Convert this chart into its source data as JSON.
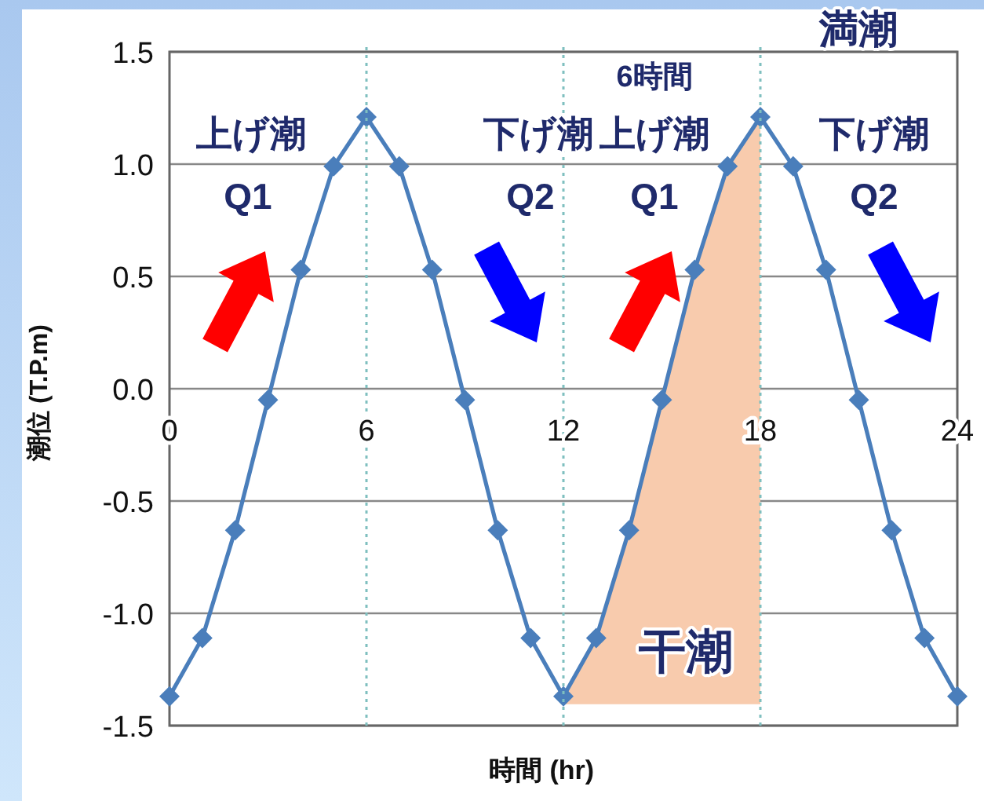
{
  "chart_data": {
    "type": "line",
    "xlabel": "時間 (hr)",
    "ylabel": "潮位 (T.P.m)",
    "xlim": [
      0,
      24
    ],
    "ylim": [
      -1.5,
      1.5
    ],
    "xticks": [
      0,
      6,
      12,
      18,
      24
    ],
    "yticks": [
      {
        "value": -1.5,
        "label": "-1.5"
      },
      {
        "value": -1,
        "label": "-1.0"
      },
      {
        "value": -0.5,
        "label": "-0.5"
      },
      {
        "value": 0,
        "label": "0.0"
      },
      {
        "value": 0.5,
        "label": "0.5"
      },
      {
        "value": 1,
        "label": "1.0"
      },
      {
        "value": 1.5,
        "label": "1.5"
      }
    ],
    "grid": "y",
    "marker": "diamond",
    "line_style": "solid",
    "series": [
      {
        "color": "#4a7ebb",
        "x": [
          0,
          1,
          2,
          3,
          4,
          5,
          6,
          7,
          8,
          9,
          10,
          11,
          12,
          13,
          14,
          15,
          16,
          17,
          18,
          19,
          20,
          21,
          22,
          23,
          24
        ],
        "values": [
          -1.37,
          -1.11,
          -0.63,
          -0.05,
          0.53,
          0.99,
          1.21,
          0.99,
          0.53,
          -0.05,
          -0.63,
          -1.11,
          -1.37,
          -1.11,
          -0.63,
          -0.05,
          0.53,
          0.99,
          1.21,
          0.99,
          0.53,
          -0.05,
          -0.63,
          -1.11,
          -1.37
        ]
      }
    ],
    "ref_lines": [
      {
        "axis": "x",
        "value": 6,
        "color": "#7fbfbf",
        "line_style": "dotted"
      },
      {
        "axis": "x",
        "value": 12,
        "color": "#7fbfbf",
        "line_style": "dotted"
      },
      {
        "axis": "x",
        "value": 18,
        "color": "#7fbfbf",
        "line_style": "dotted"
      }
    ],
    "annotations": [
      "上げ潮",
      "Q1",
      "下げ潮",
      "Q2",
      "6時間",
      "上げ潮",
      "Q1",
      "満潮",
      "下げ潮",
      "Q2",
      "干潮"
    ]
  }
}
